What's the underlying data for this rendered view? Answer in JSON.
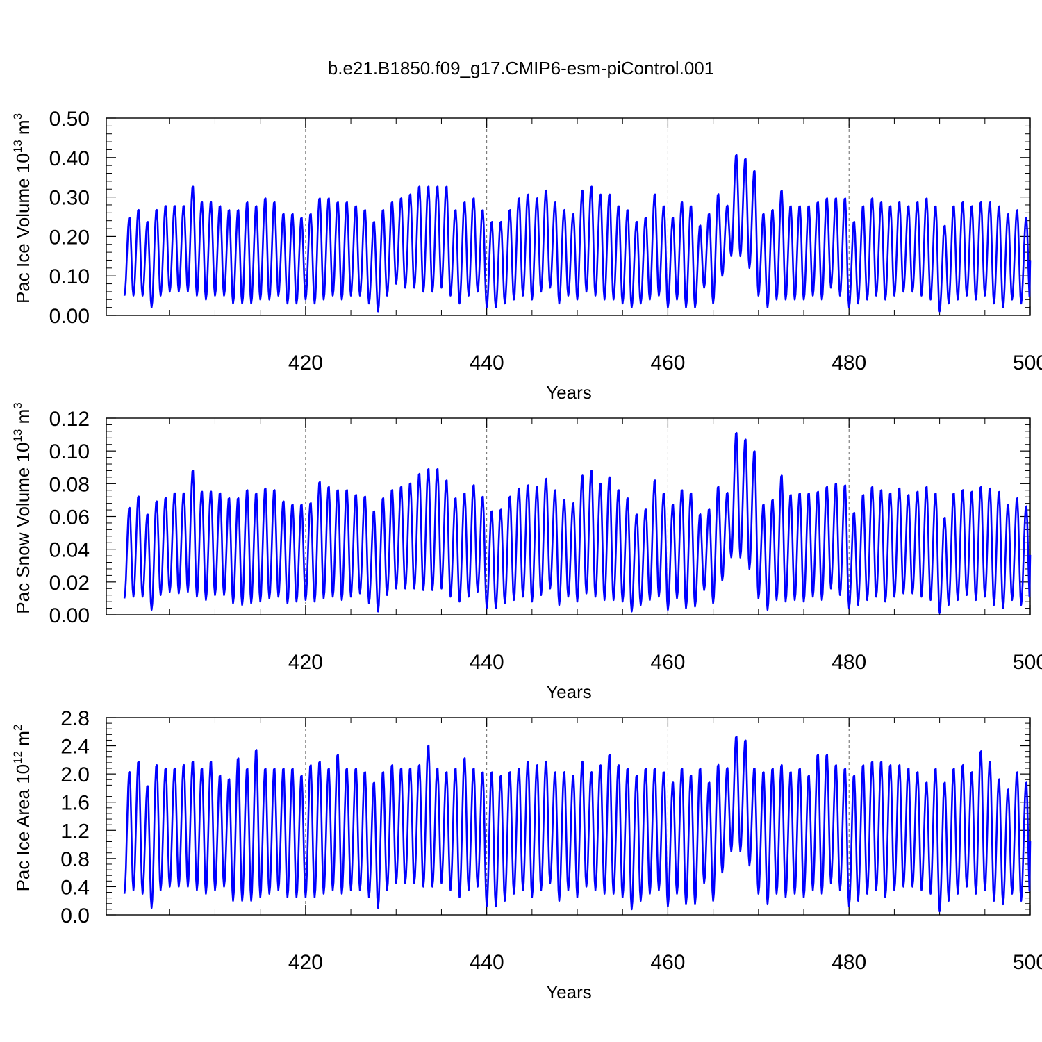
{
  "figure": {
    "title": "b.e21.B1850.f09_g17.CMIP6-esm-piControl.001"
  },
  "chart_data": [
    {
      "type": "line",
      "title": "b.e21.B1850.f09_g17.CMIP6-esm-piControl.001",
      "xlabel": "Years",
      "ylabel": {
        "base": "Pac Ice Volume 10",
        "exp": "13",
        "unit": " m",
        "unit_exp": "3"
      },
      "xlim": [
        398,
        500
      ],
      "ylim": [
        0.0,
        0.5
      ],
      "xticks": [
        "420",
        "440",
        "460",
        "480",
        "500"
      ],
      "yticks": [
        "0.00",
        "0.10",
        "0.20",
        "0.30",
        "0.40",
        "0.50"
      ],
      "grid_x": true,
      "color": "#0000ff",
      "series": {
        "years": [
          400,
          401,
          402,
          403,
          404,
          405,
          406,
          407,
          408,
          409,
          410,
          411,
          412,
          413,
          414,
          415,
          416,
          417,
          418,
          419,
          420,
          421,
          422,
          423,
          424,
          425,
          426,
          427,
          428,
          429,
          430,
          431,
          432,
          433,
          434,
          435,
          436,
          437,
          438,
          439,
          440,
          441,
          442,
          443,
          444,
          445,
          446,
          447,
          448,
          449,
          450,
          451,
          452,
          453,
          454,
          455,
          456,
          457,
          458,
          459,
          460,
          461,
          462,
          463,
          464,
          465,
          466,
          467,
          468,
          469,
          470,
          471,
          472,
          473,
          474,
          475,
          476,
          477,
          478,
          479,
          480,
          481,
          482,
          483,
          484,
          485,
          486,
          487,
          488,
          489,
          490,
          491,
          492,
          493,
          494,
          495,
          496,
          497,
          498,
          499
        ],
        "max": [
          0.25,
          0.27,
          0.24,
          0.27,
          0.28,
          0.28,
          0.28,
          0.33,
          0.29,
          0.29,
          0.28,
          0.27,
          0.27,
          0.29,
          0.28,
          0.3,
          0.29,
          0.26,
          0.26,
          0.25,
          0.26,
          0.3,
          0.3,
          0.29,
          0.29,
          0.28,
          0.27,
          0.24,
          0.27,
          0.29,
          0.3,
          0.31,
          0.33,
          0.33,
          0.33,
          0.33,
          0.27,
          0.29,
          0.3,
          0.27,
          0.24,
          0.24,
          0.27,
          0.3,
          0.31,
          0.3,
          0.32,
          0.29,
          0.27,
          0.26,
          0.32,
          0.33,
          0.31,
          0.31,
          0.28,
          0.27,
          0.24,
          0.25,
          0.31,
          0.28,
          0.25,
          0.29,
          0.28,
          0.23,
          0.26,
          0.31,
          0.28,
          0.41,
          0.4,
          0.37,
          0.26,
          0.27,
          0.32,
          0.28,
          0.28,
          0.28,
          0.29,
          0.3,
          0.3,
          0.3,
          0.24,
          0.28,
          0.3,
          0.29,
          0.28,
          0.29,
          0.28,
          0.29,
          0.3,
          0.28,
          0.23,
          0.28,
          0.29,
          0.28,
          0.29,
          0.29,
          0.28,
          0.26,
          0.27,
          0.25
        ],
        "min": [
          0.05,
          0.05,
          0.05,
          0.02,
          0.05,
          0.06,
          0.06,
          0.06,
          0.05,
          0.04,
          0.05,
          0.05,
          0.03,
          0.03,
          0.03,
          0.04,
          0.04,
          0.05,
          0.03,
          0.03,
          0.04,
          0.03,
          0.04,
          0.05,
          0.04,
          0.05,
          0.05,
          0.03,
          0.01,
          0.05,
          0.08,
          0.07,
          0.07,
          0.06,
          0.06,
          0.07,
          0.05,
          0.03,
          0.05,
          0.06,
          0.02,
          0.02,
          0.03,
          0.04,
          0.05,
          0.04,
          0.06,
          0.07,
          0.03,
          0.05,
          0.04,
          0.06,
          0.05,
          0.04,
          0.04,
          0.03,
          0.02,
          0.03,
          0.04,
          0.05,
          0.02,
          0.04,
          0.02,
          0.02,
          0.07,
          0.03,
          0.1,
          0.15,
          0.15,
          0.12,
          0.05,
          0.02,
          0.04,
          0.04,
          0.04,
          0.04,
          0.05,
          0.04,
          0.07,
          0.05,
          0.02,
          0.03,
          0.04,
          0.05,
          0.04,
          0.05,
          0.06,
          0.06,
          0.05,
          0.04,
          0.01,
          0.03,
          0.04,
          0.05,
          0.04,
          0.05,
          0.03,
          0.02,
          0.04,
          0.03
        ]
      }
    },
    {
      "type": "line",
      "xlabel": "Years",
      "ylabel": {
        "base": "Pac Snow Volume 10",
        "exp": "13",
        "unit": " m",
        "unit_exp": "3"
      },
      "xlim": [
        398,
        500
      ],
      "ylim": [
        0.0,
        0.12
      ],
      "xticks": [
        "420",
        "440",
        "460",
        "480",
        "500"
      ],
      "yticks": [
        "0.00",
        "0.02",
        "0.04",
        "0.06",
        "0.08",
        "0.10",
        "0.12"
      ],
      "grid_x": true,
      "color": "#0000ff",
      "series": {
        "years": [
          400,
          401,
          402,
          403,
          404,
          405,
          406,
          407,
          408,
          409,
          410,
          411,
          412,
          413,
          414,
          415,
          416,
          417,
          418,
          419,
          420,
          421,
          422,
          423,
          424,
          425,
          426,
          427,
          428,
          429,
          430,
          431,
          432,
          433,
          434,
          435,
          436,
          437,
          438,
          439,
          440,
          441,
          442,
          443,
          444,
          445,
          446,
          447,
          448,
          449,
          450,
          451,
          452,
          453,
          454,
          455,
          456,
          457,
          458,
          459,
          460,
          461,
          462,
          463,
          464,
          465,
          466,
          467,
          468,
          469,
          470,
          471,
          472,
          473,
          474,
          475,
          476,
          477,
          478,
          479,
          480,
          481,
          482,
          483,
          484,
          485,
          486,
          487,
          488,
          489,
          490,
          491,
          492,
          493,
          494,
          495,
          496,
          497,
          498,
          499
        ],
        "max": [
          0.066,
          0.073,
          0.062,
          0.07,
          0.072,
          0.075,
          0.075,
          0.089,
          0.076,
          0.076,
          0.075,
          0.072,
          0.072,
          0.077,
          0.075,
          0.078,
          0.077,
          0.07,
          0.068,
          0.068,
          0.069,
          0.082,
          0.079,
          0.077,
          0.077,
          0.074,
          0.073,
          0.064,
          0.072,
          0.077,
          0.079,
          0.081,
          0.087,
          0.09,
          0.09,
          0.083,
          0.072,
          0.075,
          0.08,
          0.073,
          0.064,
          0.065,
          0.073,
          0.078,
          0.08,
          0.079,
          0.084,
          0.077,
          0.071,
          0.069,
          0.086,
          0.089,
          0.081,
          0.085,
          0.077,
          0.072,
          0.062,
          0.065,
          0.083,
          0.075,
          0.068,
          0.077,
          0.075,
          0.062,
          0.065,
          0.079,
          0.075,
          0.112,
          0.108,
          0.101,
          0.068,
          0.071,
          0.086,
          0.074,
          0.075,
          0.075,
          0.076,
          0.079,
          0.081,
          0.08,
          0.063,
          0.074,
          0.079,
          0.077,
          0.075,
          0.078,
          0.074,
          0.076,
          0.079,
          0.075,
          0.06,
          0.075,
          0.077,
          0.076,
          0.079,
          0.078,
          0.076,
          0.068,
          0.072,
          0.067
        ],
        "min": [
          0.01,
          0.011,
          0.011,
          0.003,
          0.012,
          0.014,
          0.013,
          0.014,
          0.011,
          0.009,
          0.012,
          0.012,
          0.007,
          0.006,
          0.007,
          0.008,
          0.01,
          0.011,
          0.007,
          0.008,
          0.009,
          0.008,
          0.01,
          0.011,
          0.009,
          0.011,
          0.013,
          0.007,
          0.002,
          0.012,
          0.016,
          0.016,
          0.016,
          0.015,
          0.015,
          0.016,
          0.011,
          0.008,
          0.011,
          0.014,
          0.004,
          0.004,
          0.007,
          0.009,
          0.011,
          0.008,
          0.012,
          0.016,
          0.006,
          0.011,
          0.008,
          0.013,
          0.011,
          0.009,
          0.009,
          0.008,
          0.002,
          0.006,
          0.009,
          0.011,
          0.003,
          0.01,
          0.004,
          0.005,
          0.015,
          0.007,
          0.021,
          0.035,
          0.035,
          0.028,
          0.01,
          0.003,
          0.009,
          0.008,
          0.009,
          0.008,
          0.011,
          0.009,
          0.016,
          0.012,
          0.004,
          0.006,
          0.009,
          0.011,
          0.008,
          0.011,
          0.013,
          0.013,
          0.011,
          0.009,
          0.001,
          0.006,
          0.009,
          0.012,
          0.009,
          0.011,
          0.006,
          0.004,
          0.009,
          0.006
        ]
      }
    },
    {
      "type": "line",
      "xlabel": "Years",
      "ylabel": {
        "base": "Pac Ice Area 10",
        "exp": "12",
        "unit": " m",
        "unit_exp": "2"
      },
      "xlim": [
        398,
        500
      ],
      "ylim": [
        0.0,
        2.8
      ],
      "xticks": [
        "420",
        "440",
        "460",
        "480",
        "500"
      ],
      "yticks": [
        "0.0",
        "0.4",
        "0.8",
        "1.2",
        "1.6",
        "2.0",
        "2.4",
        "2.8"
      ],
      "grid_x": true,
      "color": "#0000ff",
      "series": {
        "years": [
          400,
          401,
          402,
          403,
          404,
          405,
          406,
          407,
          408,
          409,
          410,
          411,
          412,
          413,
          414,
          415,
          416,
          417,
          418,
          419,
          420,
          421,
          422,
          423,
          424,
          425,
          426,
          427,
          428,
          429,
          430,
          431,
          432,
          433,
          434,
          435,
          436,
          437,
          438,
          439,
          440,
          441,
          442,
          443,
          444,
          445,
          446,
          447,
          448,
          449,
          450,
          451,
          452,
          453,
          454,
          455,
          456,
          457,
          458,
          459,
          460,
          461,
          462,
          463,
          464,
          465,
          466,
          467,
          468,
          469,
          470,
          471,
          472,
          473,
          474,
          475,
          476,
          477,
          478,
          479,
          480,
          481,
          482,
          483,
          484,
          485,
          486,
          487,
          488,
          489,
          490,
          491,
          492,
          493,
          494,
          495,
          496,
          497,
          498,
          499
        ],
        "max": [
          2.05,
          2.2,
          1.85,
          2.15,
          2.1,
          2.1,
          2.15,
          2.2,
          2.1,
          2.2,
          2.0,
          1.95,
          2.25,
          2.1,
          2.37,
          2.1,
          2.1,
          2.1,
          2.1,
          2.0,
          2.15,
          2.2,
          2.1,
          2.3,
          2.1,
          2.1,
          2.05,
          1.9,
          2.05,
          2.15,
          2.1,
          2.1,
          2.15,
          2.43,
          2.1,
          2.05,
          2.1,
          2.25,
          2.1,
          2.05,
          2.05,
          2.0,
          2.05,
          2.1,
          2.2,
          2.15,
          2.2,
          2.05,
          2.05,
          2.0,
          2.2,
          2.05,
          2.15,
          2.3,
          2.15,
          2.1,
          2.0,
          2.1,
          2.1,
          2.05,
          1.9,
          2.1,
          2.0,
          2.1,
          1.9,
          2.15,
          2.1,
          2.55,
          2.5,
          2.1,
          2.05,
          2.1,
          2.15,
          2.05,
          2.1,
          2.0,
          2.3,
          2.3,
          2.15,
          2.1,
          2.0,
          2.15,
          2.2,
          2.2,
          2.15,
          2.15,
          2.1,
          2.05,
          1.9,
          2.1,
          1.9,
          2.1,
          2.15,
          2.05,
          2.35,
          2.2,
          1.95,
          1.8,
          2.05,
          1.9
        ],
        "min": [
          0.3,
          0.35,
          0.3,
          0.1,
          0.35,
          0.4,
          0.4,
          0.4,
          0.35,
          0.3,
          0.35,
          0.4,
          0.2,
          0.2,
          0.2,
          0.25,
          0.3,
          0.35,
          0.25,
          0.25,
          0.25,
          0.25,
          0.3,
          0.35,
          0.3,
          0.35,
          0.35,
          0.25,
          0.1,
          0.35,
          0.45,
          0.45,
          0.45,
          0.4,
          0.4,
          0.45,
          0.35,
          0.25,
          0.35,
          0.4,
          0.12,
          0.12,
          0.2,
          0.3,
          0.35,
          0.25,
          0.35,
          0.45,
          0.2,
          0.35,
          0.25,
          0.4,
          0.35,
          0.3,
          0.3,
          0.25,
          0.08,
          0.2,
          0.3,
          0.35,
          0.12,
          0.3,
          0.15,
          0.15,
          0.45,
          0.2,
          0.6,
          0.9,
          0.9,
          0.7,
          0.3,
          0.15,
          0.3,
          0.25,
          0.3,
          0.25,
          0.35,
          0.3,
          0.45,
          0.35,
          0.12,
          0.2,
          0.3,
          0.35,
          0.25,
          0.35,
          0.4,
          0.4,
          0.35,
          0.3,
          0.05,
          0.2,
          0.3,
          0.4,
          0.3,
          0.35,
          0.2,
          0.15,
          0.3,
          0.2
        ]
      }
    }
  ]
}
